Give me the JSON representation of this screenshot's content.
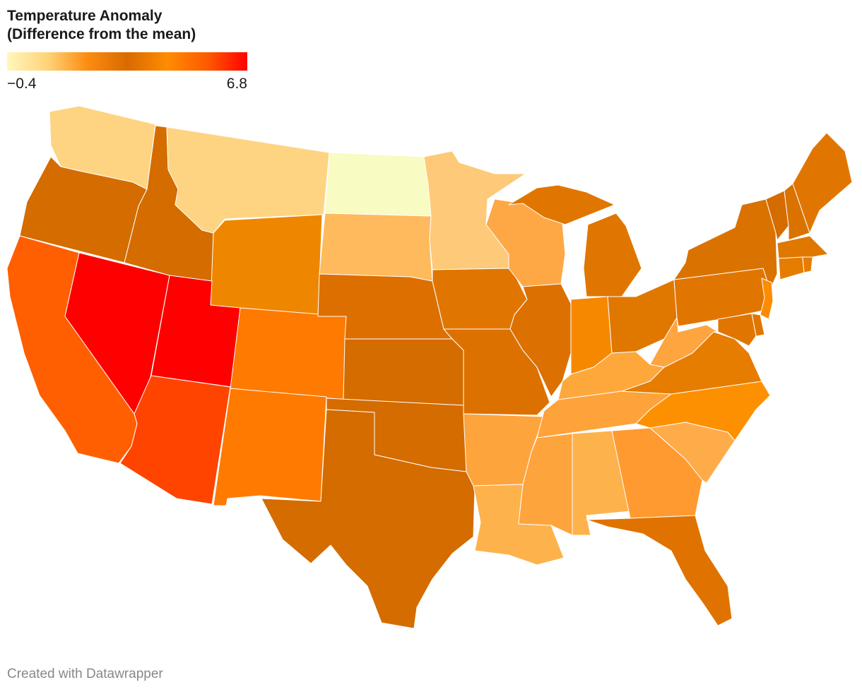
{
  "legend": {
    "title": "Temperature Anomaly\n(Difference from the mean)",
    "min_label": "−0.4",
    "max_label": "6.8",
    "min": -0.4,
    "max": 6.8,
    "gradient": [
      "#fff7bc",
      "#fed47a",
      "#fd8d10",
      "#d96a00",
      "#ff8c00",
      "#ff5a00",
      "#ff0000"
    ]
  },
  "footer": "Created with Datawrapper",
  "states": [
    {
      "name": "Washington",
      "fill": "#fed482"
    },
    {
      "name": "Oregon",
      "fill": "#d46c00"
    },
    {
      "name": "California",
      "fill": "#ff5f00"
    },
    {
      "name": "Nevada",
      "fill": "#ff0000"
    },
    {
      "name": "Idaho",
      "fill": "#d46c00"
    },
    {
      "name": "Montana",
      "fill": "#fed482"
    },
    {
      "name": "Wyoming",
      "fill": "#ef8600"
    },
    {
      "name": "Utah",
      "fill": "#ff0000"
    },
    {
      "name": "Arizona",
      "fill": "#ff4400"
    },
    {
      "name": "Colorado",
      "fill": "#ff7a00"
    },
    {
      "name": "New Mexico",
      "fill": "#ff7a00"
    },
    {
      "name": "North Dakota",
      "fill": "#f8fbc2"
    },
    {
      "name": "South Dakota",
      "fill": "#feba5c"
    },
    {
      "name": "Nebraska",
      "fill": "#dc6f00"
    },
    {
      "name": "Kansas",
      "fill": "#d46c00"
    },
    {
      "name": "Oklahoma",
      "fill": "#d46c00"
    },
    {
      "name": "Texas",
      "fill": "#d46c00"
    },
    {
      "name": "Minnesota",
      "fill": "#fec978"
    },
    {
      "name": "Iowa",
      "fill": "#e07600"
    },
    {
      "name": "Missouri",
      "fill": "#dc7100"
    },
    {
      "name": "Arkansas",
      "fill": "#fea43c"
    },
    {
      "name": "Louisiana",
      "fill": "#feb24c"
    },
    {
      "name": "Wisconsin",
      "fill": "#fea845"
    },
    {
      "name": "Illinois",
      "fill": "#dc7000"
    },
    {
      "name": "Michigan",
      "fill": "#e07600"
    },
    {
      "name": "Indiana",
      "fill": "#f68800"
    },
    {
      "name": "Ohio",
      "fill": "#e07800"
    },
    {
      "name": "Kentucky",
      "fill": "#fea83c"
    },
    {
      "name": "Tennessee",
      "fill": "#fea23a"
    },
    {
      "name": "Mississippi",
      "fill": "#fea43c"
    },
    {
      "name": "Alabama",
      "fill": "#feb24c"
    },
    {
      "name": "Georgia",
      "fill": "#fe9a30"
    },
    {
      "name": "Florida",
      "fill": "#e07200"
    },
    {
      "name": "South Carolina",
      "fill": "#feab4a"
    },
    {
      "name": "North Carolina",
      "fill": "#fd9000"
    },
    {
      "name": "Virginia",
      "fill": "#e67c00"
    },
    {
      "name": "West Virginia",
      "fill": "#fea540"
    },
    {
      "name": "Pennsylvania",
      "fill": "#e07600"
    },
    {
      "name": "New York",
      "fill": "#da7200"
    },
    {
      "name": "Vermont",
      "fill": "#d46c00"
    },
    {
      "name": "New Hampshire",
      "fill": "#da7200"
    },
    {
      "name": "Maine",
      "fill": "#e07600"
    },
    {
      "name": "Massachusetts",
      "fill": "#e07800"
    },
    {
      "name": "Connecticut",
      "fill": "#e67c00"
    },
    {
      "name": "Rhode Island",
      "fill": "#e67c00"
    },
    {
      "name": "New Jersey",
      "fill": "#fd8c00"
    },
    {
      "name": "Delaware",
      "fill": "#e07600"
    },
    {
      "name": "Maryland",
      "fill": "#e07600"
    }
  ]
}
